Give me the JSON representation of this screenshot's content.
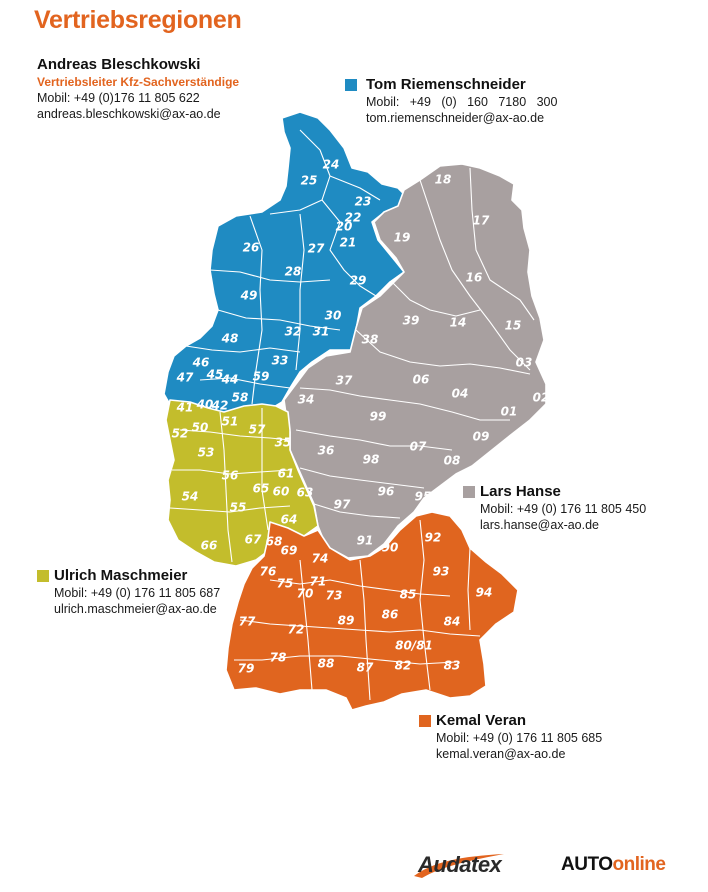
{
  "title": "Vertriebsregionen",
  "colors": {
    "blue": "#1f8bc2",
    "gray": "#a8a0a0",
    "yellow": "#c3bd2c",
    "orange": "#e0651f",
    "accent": "#e2641f"
  },
  "contacts": {
    "bleschkowski": {
      "name": "Andreas Bleschkowski",
      "role": "Vertriebsleiter Kfz-Sachverständige",
      "phone": "Mobil: +49 (0)176 11 805 622",
      "email": "andreas.bleschkowski@ax-ao.de"
    },
    "riemenschneider": {
      "name": "Tom Riemenschneider",
      "phone": "Mobil:   +49   (0)   160   7180   300",
      "email": "tom.riemenschneider@ax-ao.de",
      "color": "#1f8bc2"
    },
    "hanse": {
      "name": "Lars Hanse",
      "phone": "Mobil: +49 (0) 176 11 805 450",
      "email": "lars.hanse@ax-ao.de",
      "color": "#a8a0a0"
    },
    "maschmeier": {
      "name": "Ulrich Maschmeier",
      "phone": "Mobil: +49 (0) 176 11 805 687",
      "email": "ulrich.maschmeier@ax-ao.de",
      "color": "#c3bd2c"
    },
    "veran": {
      "name": "Kemal Veran",
      "phone": "Mobil: +49 (0) 176 11 805 685",
      "email": "kemal.veran@ax-ao.de",
      "color": "#e0651f"
    }
  },
  "region_labels": {
    "blue": [
      "24",
      "25",
      "23",
      "22",
      "20",
      "21",
      "27",
      "26",
      "28",
      "29",
      "49",
      "48",
      "32",
      "31",
      "30",
      "46",
      "47",
      "45",
      "44",
      "33",
      "59",
      "40",
      "42",
      "58"
    ],
    "gray": [
      "18",
      "17",
      "19",
      "16",
      "39",
      "14",
      "15",
      "38",
      "37",
      "06",
      "03",
      "04",
      "02",
      "01",
      "34",
      "99",
      "07",
      "09",
      "36",
      "98",
      "08",
      "97",
      "96",
      "95",
      "91",
      "90"
    ],
    "yellow": [
      "41",
      "52",
      "50",
      "51",
      "57",
      "35",
      "53",
      "56",
      "65",
      "61",
      "60",
      "63",
      "54",
      "55",
      "64",
      "66",
      "67"
    ],
    "orange": [
      "68",
      "69",
      "74",
      "76",
      "75",
      "71",
      "70",
      "73",
      "85",
      "92",
      "93",
      "94",
      "77",
      "72",
      "89",
      "86",
      "84",
      "80/81",
      "79",
      "78",
      "88",
      "87",
      "82",
      "83"
    ]
  },
  "logos": {
    "audatex": "Audatex",
    "autoonline_part1": "AUTO",
    "autoonline_part2": "online"
  }
}
